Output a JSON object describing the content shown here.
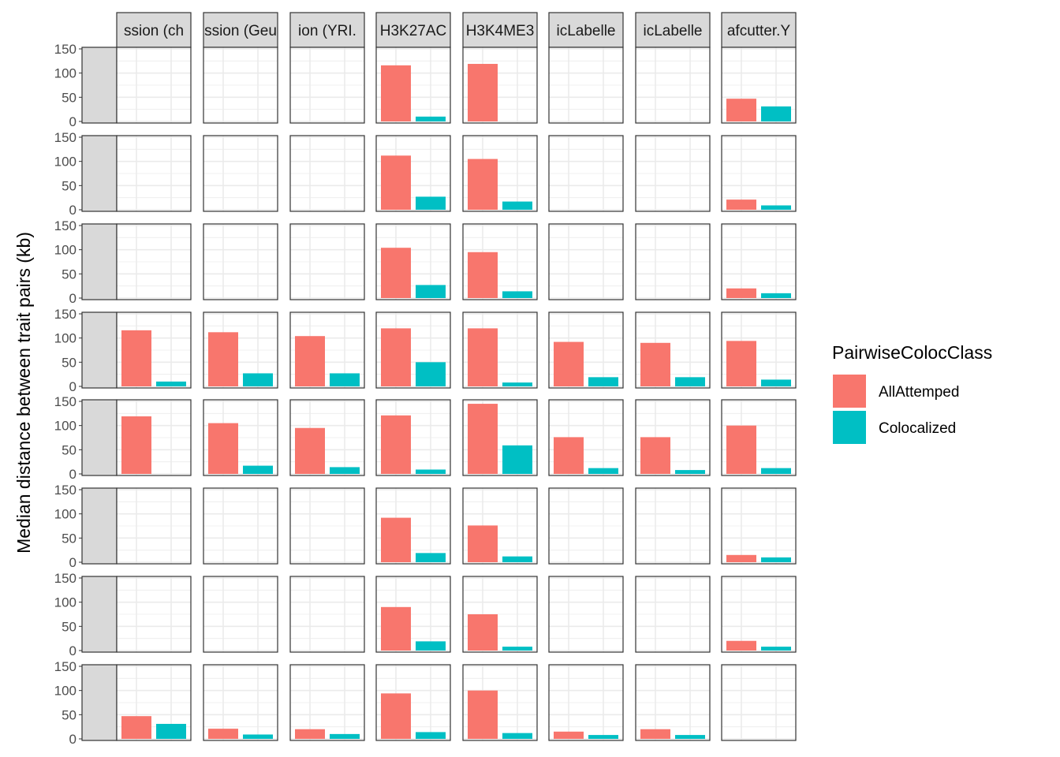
{
  "chart_data": {
    "type": "bar",
    "facet_grid": true,
    "ylabel": "Median distance between trait pairs (kb)",
    "xlabel": "",
    "ylim": [
      0,
      150
    ],
    "y_ticks": [
      "0",
      "50",
      "100",
      "150"
    ],
    "grid": true,
    "facets": [
      "ssion (ch",
      "ssion (Geu",
      "ion (YRI.",
      "H3K27AC",
      "H3K4ME3",
      "icLabelle",
      "icLabelle",
      "afcutter.Y"
    ],
    "series": [
      {
        "name": "AllAttemped",
        "color": "#F8766D",
        "values": [
          [
            0,
            0,
            0,
            116,
            119,
            0,
            0,
            47
          ],
          [
            0,
            0,
            0,
            112,
            105,
            0,
            0,
            21
          ],
          [
            0,
            0,
            0,
            104,
            95,
            0,
            0,
            20
          ],
          [
            116,
            112,
            104,
            120,
            120,
            92,
            90,
            94
          ],
          [
            119,
            105,
            95,
            121,
            145,
            76,
            76,
            100
          ],
          [
            0,
            0,
            0,
            92,
            76,
            0,
            0,
            15
          ],
          [
            0,
            0,
            0,
            90,
            75,
            0,
            0,
            20
          ],
          [
            47,
            21,
            20,
            94,
            100,
            15,
            20,
            0
          ]
        ]
      },
      {
        "name": "Colocalized",
        "color": "#00BFC4",
        "values": [
          [
            0,
            0,
            0,
            10,
            0,
            0,
            0,
            31
          ],
          [
            0,
            0,
            0,
            27,
            17,
            0,
            0,
            9
          ],
          [
            0,
            0,
            0,
            27,
            14,
            0,
            0,
            10
          ],
          [
            10,
            27,
            27,
            50,
            8,
            19,
            19,
            14
          ],
          [
            0,
            17,
            14,
            9,
            59,
            12,
            8,
            12
          ],
          [
            0,
            0,
            0,
            19,
            12,
            0,
            0,
            10
          ],
          [
            0,
            0,
            0,
            19,
            8,
            0,
            0,
            8
          ],
          [
            31,
            9,
            10,
            14,
            12,
            8,
            8,
            0
          ]
        ]
      }
    ],
    "legend": {
      "title": "PairwiseColocClass",
      "placement": "right"
    }
  },
  "colors": {
    "panel_border": "#333333",
    "grid": "#ebebeb",
    "strip_fill": "#d9d9d9"
  }
}
